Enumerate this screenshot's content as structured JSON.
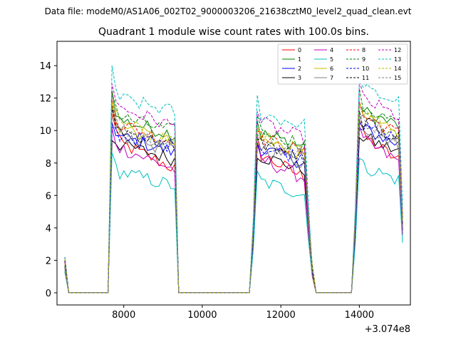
{
  "chart_data": {
    "type": "line",
    "suptitle": "Data file: modeM0/AS1A06_002T02_9000003206_21638cztM0_level2_quad_clean.evt",
    "title": "Quadrant 1 module wise count rates with 100.0s bins.",
    "xlabel": "",
    "ylabel": "",
    "x_offset_label": "+3.074e8",
    "xlim": [
      6300,
      15300
    ],
    "ylim": [
      -0.75,
      15.5
    ],
    "x_ticks": [
      8000,
      10000,
      12000,
      14000
    ],
    "y_ticks": [
      0,
      2,
      4,
      6,
      8,
      10,
      12,
      14
    ],
    "grid": false,
    "legend_position": "top-right",
    "segments": [
      {
        "start": 7650,
        "end": 9350
      },
      {
        "start": 11300,
        "end": 12700
      },
      {
        "start": 13900,
        "end": 15100
      }
    ],
    "series": [
      {
        "name": "0",
        "color": "#ff0000",
        "dash": "solid",
        "level": 9.5,
        "decay": 0.2,
        "peak": 1.25
      },
      {
        "name": "1",
        "color": "#008000",
        "dash": "solid",
        "level": 10.8,
        "decay": 0.1,
        "peak": 1.2
      },
      {
        "name": "2",
        "color": "#0000ff",
        "dash": "solid",
        "level": 9.8,
        "decay": 0.12,
        "peak": 1.1
      },
      {
        "name": "3",
        "color": "#000000",
        "dash": "solid",
        "level": 9.3,
        "decay": 0.12,
        "peak": 1.05
      },
      {
        "name": "4",
        "color": "#bf00bf",
        "dash": "solid",
        "level": 9.2,
        "decay": 0.18,
        "peak": 1.12
      },
      {
        "name": "5",
        "color": "#00bfbf",
        "dash": "solid",
        "level": 7.6,
        "decay": 0.14,
        "peak": 1.12
      },
      {
        "name": "6",
        "color": "#bfbf00",
        "dash": "solid",
        "level": 10.4,
        "decay": 0.12,
        "peak": 1.15
      },
      {
        "name": "7",
        "color": "#808080",
        "dash": "solid",
        "level": 10.0,
        "decay": 0.14,
        "peak": 1.18
      },
      {
        "name": "8",
        "color": "#ff0000",
        "dash": "dashed",
        "level": 10.6,
        "decay": 0.13,
        "peak": 1.18
      },
      {
        "name": "9",
        "color": "#008000",
        "dash": "dashed",
        "level": 11.0,
        "decay": 0.1,
        "peak": 1.2
      },
      {
        "name": "10",
        "color": "#0000ff",
        "dash": "dashed",
        "level": 9.8,
        "decay": 0.08,
        "peak": 1.08
      },
      {
        "name": "11",
        "color": "#000000",
        "dash": "dashed",
        "level": 10.2,
        "decay": 0.12,
        "peak": 1.12
      },
      {
        "name": "12",
        "color": "#bf00bf",
        "dash": "dashed",
        "level": 11.6,
        "decay": 0.12,
        "peak": 1.18
      },
      {
        "name": "13",
        "color": "#00bfbf",
        "dash": "dashed",
        "level": 12.1,
        "decay": 0.08,
        "peak": 1.2
      },
      {
        "name": "14",
        "color": "#bfbf00",
        "dash": "dashed",
        "level": 10.6,
        "decay": 0.12,
        "peak": 1.18
      },
      {
        "name": "15",
        "color": "#808080",
        "dash": "dashed",
        "level": 10.3,
        "decay": 0.12,
        "peak": 1.16
      }
    ]
  }
}
